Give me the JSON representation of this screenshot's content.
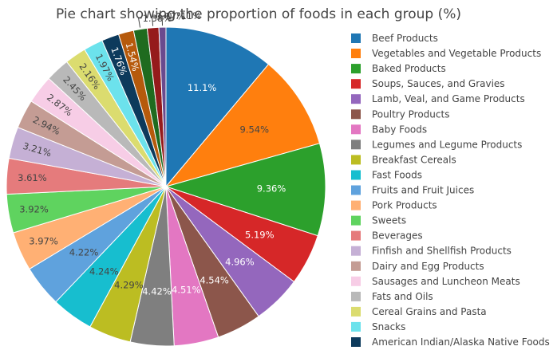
{
  "chart_data": {
    "type": "pie",
    "title": "Pie chart showing the proportion of foods in each group (%)",
    "slices": [
      {
        "label": "Beef Products",
        "value": 11.1,
        "text": "11.1%",
        "color": "#1f77b4",
        "text_color": "#ffffff"
      },
      {
        "label": "Vegetables and Vegetable Products",
        "value": 9.54,
        "text": "9.54%",
        "color": "#ff7f0e",
        "text_color": "#444444"
      },
      {
        "label": "Baked Products",
        "value": 9.36,
        "text": "9.36%",
        "color": "#2ca02c",
        "text_color": "#ffffff"
      },
      {
        "label": "Soups, Sauces, and Gravies",
        "value": 5.19,
        "text": "5.19%",
        "color": "#d62728",
        "text_color": "#ffffff"
      },
      {
        "label": "Lamb, Veal, and Game Products",
        "value": 4.96,
        "text": "4.96%",
        "color": "#9467bd",
        "text_color": "#ffffff"
      },
      {
        "label": "Poultry Products",
        "value": 4.54,
        "text": "4.54%",
        "color": "#8c564b",
        "text_color": "#ffffff"
      },
      {
        "label": "Baby Foods",
        "value": 4.51,
        "text": "4.51%",
        "color": "#e377c2",
        "text_color": "#ffffff"
      },
      {
        "label": "Legumes and Legume Products",
        "value": 4.42,
        "text": "4.42%",
        "color": "#7f7f7f",
        "text_color": "#ffffff"
      },
      {
        "label": "Breakfast Cereals",
        "value": 4.29,
        "text": "4.29%",
        "color": "#bcbd22",
        "text_color": "#444444"
      },
      {
        "label": "Fast Foods",
        "value": 4.24,
        "text": "4.24%",
        "color": "#17becf",
        "text_color": "#444444"
      },
      {
        "label": "Fruits and Fruit Juices",
        "value": 4.22,
        "text": "4.22%",
        "color": "#5fa2dd",
        "text_color": "#444444"
      },
      {
        "label": "Pork Products",
        "value": 3.97,
        "text": "3.97%",
        "color": "#ffb074",
        "text_color": "#444444"
      },
      {
        "label": "Sweets",
        "value": 3.92,
        "text": "3.92%",
        "color": "#5fd35f",
        "text_color": "#444444"
      },
      {
        "label": "Beverages",
        "value": 3.61,
        "text": "3.61%",
        "color": "#e57b7c",
        "text_color": "#444444"
      },
      {
        "label": "Finfish and Shellfish Products",
        "value": 3.21,
        "text": "3.21%",
        "color": "#c5b0d5",
        "text_color": "#444444"
      },
      {
        "label": "Dairy and Egg Products",
        "value": 2.94,
        "text": "2.94%",
        "color": "#c49c94",
        "text_color": "#444444"
      },
      {
        "label": "Sausages and Luncheon Meats",
        "value": 2.87,
        "text": "2.87%",
        "color": "#f7cde6",
        "text_color": "#444444"
      },
      {
        "label": "Fats and Oils",
        "value": 2.45,
        "text": "2.45%",
        "color": "#b9b9b9",
        "text_color": "#444444"
      },
      {
        "label": "Cereal Grains and Pasta",
        "value": 2.16,
        "text": "2.16%",
        "color": "#dbdc6f",
        "text_color": "#444444"
      },
      {
        "label": "Snacks",
        "value": 1.97,
        "text": "1.97%",
        "color": "#6ce2ec",
        "text_color": "#444444"
      },
      {
        "label": "American Indian/Alaska Native Foods",
        "value": 1.76,
        "text": "1.76%",
        "color": "#0d3a5c",
        "text_color": "#ffffff"
      },
      {
        "label": "",
        "value": 1.54,
        "text": "1.54%",
        "color": "#b65a0c",
        "text_color": "#ffffff"
      },
      {
        "label": "",
        "value": 1.38,
        "text": "1.38%",
        "color": "#1f6b1f",
        "text_color": "#444444"
      },
      {
        "label": "",
        "value": 1.17,
        "text": "1.17%",
        "color": "#951b1c",
        "text_color": "#444444"
      },
      {
        "label": "",
        "value": 0.711,
        "text": "0.711%",
        "color": "#6a4a8e",
        "text_color": "#444444"
      }
    ],
    "legend_position": "right",
    "sort": "descending, clockwise from top"
  }
}
